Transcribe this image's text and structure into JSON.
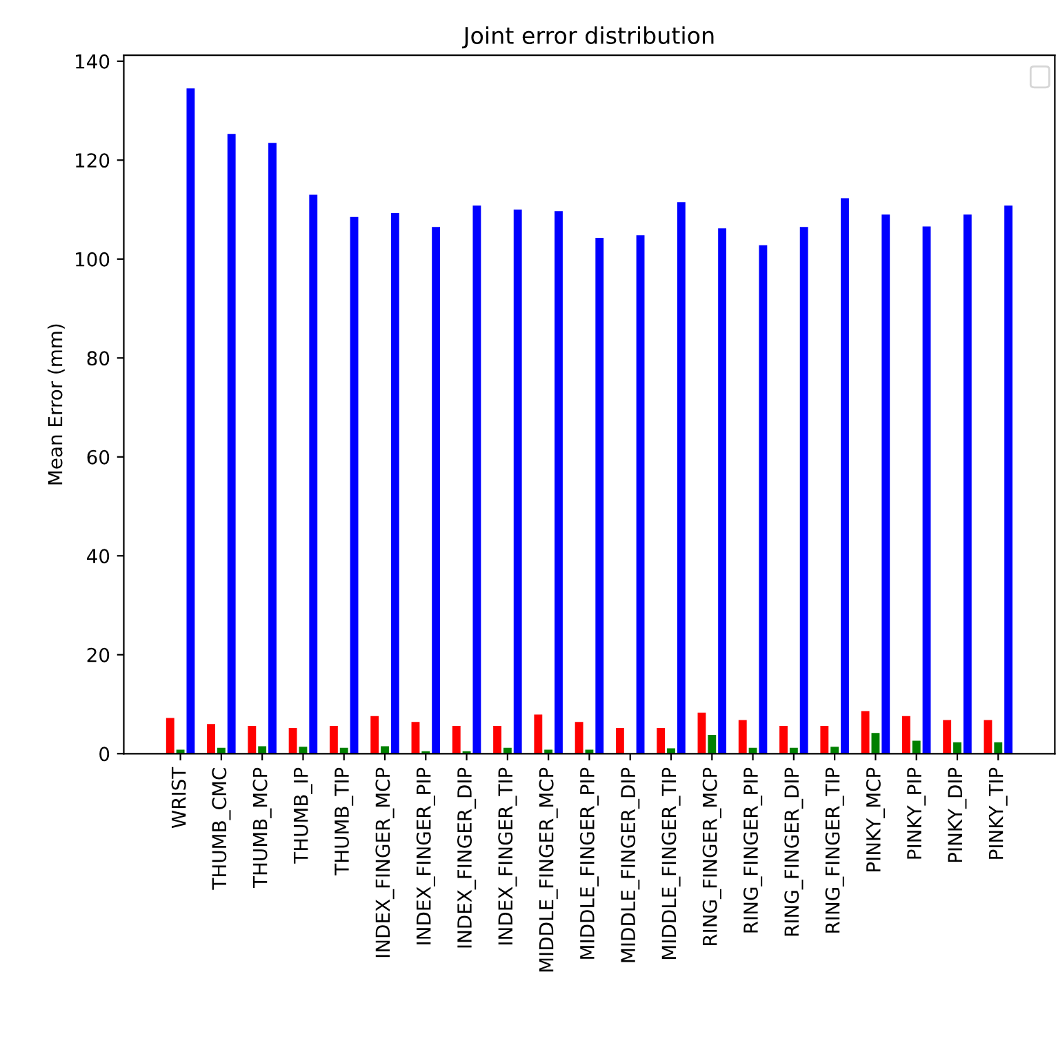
{
  "chart_data": {
    "type": "bar",
    "title": "Joint error distribution",
    "ylabel": "Mean Error (mm)",
    "categories": [
      "WRIST",
      "THUMB_CMC",
      "THUMB_MCP",
      "THUMB_IP",
      "THUMB_TIP",
      "INDEX_FINGER_MCP",
      "INDEX_FINGER_PIP",
      "INDEX_FINGER_DIP",
      "INDEX_FINGER_TIP",
      "MIDDLE_FINGER_MCP",
      "MIDDLE_FINGER_PIP",
      "MIDDLE_FINGER_DIP",
      "MIDDLE_FINGER_TIP",
      "RING_FINGER_MCP",
      "RING_FINGER_PIP",
      "RING_FINGER_DIP",
      "RING_FINGER_TIP",
      "PINKY_MCP",
      "PINKY_PIP",
      "PINKY_DIP",
      "PINKY_TIP"
    ],
    "series": [
      {
        "color": "#ff0000",
        "values": [
          7.2,
          6.0,
          5.6,
          5.2,
          5.6,
          7.6,
          6.4,
          5.6,
          5.6,
          7.9,
          6.4,
          5.2,
          5.2,
          8.3,
          6.8,
          5.6,
          5.6,
          8.6,
          7.6,
          6.8,
          6.8
        ]
      },
      {
        "color": "#008000",
        "values": [
          0.8,
          1.2,
          1.5,
          1.4,
          1.2,
          1.5,
          0.5,
          0.5,
          1.2,
          0.8,
          0.8,
          null,
          1.1,
          3.8,
          1.2,
          1.2,
          1.4,
          4.2,
          2.6,
          2.3,
          2.3
        ]
      },
      {
        "color": "#0000ff",
        "values": [
          134.5,
          125.3,
          123.5,
          113,
          108.5,
          109.3,
          106.5,
          110.8,
          110,
          109.7,
          104.3,
          104.8,
          111.5,
          106.2,
          102.8,
          106.5,
          112.3,
          109,
          106.6,
          109,
          110.8
        ]
      }
    ],
    "ylim": [
      0,
      141.2
    ],
    "yticks": [
      0,
      20,
      40,
      60,
      80,
      100,
      120,
      140
    ],
    "grid": false
  }
}
